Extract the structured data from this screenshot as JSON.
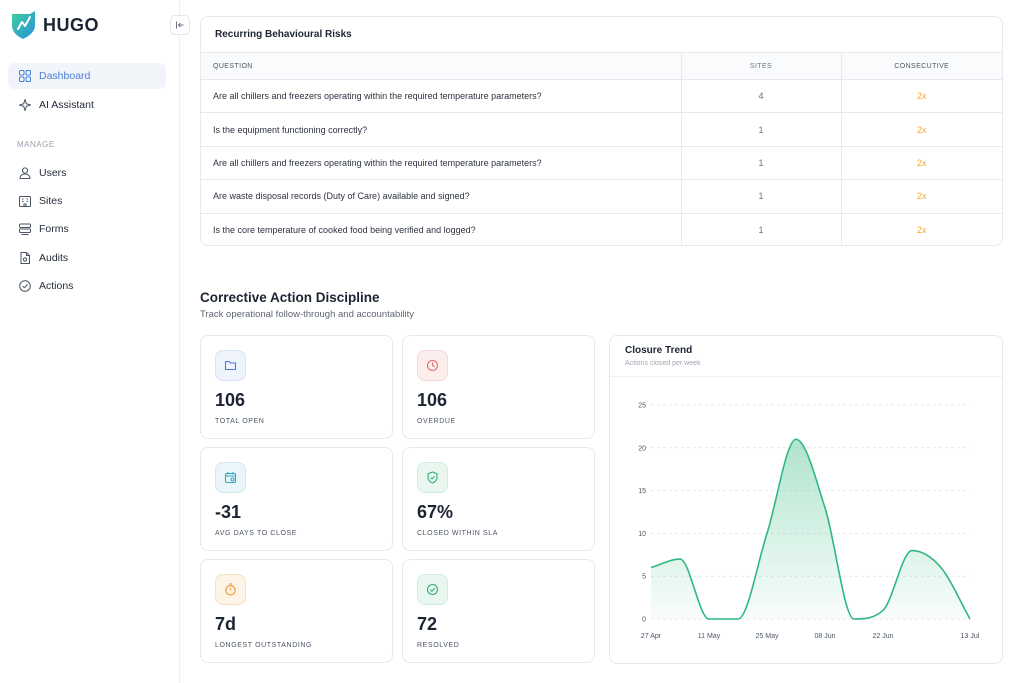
{
  "brand": {
    "name": "HUGO"
  },
  "sidebar": {
    "items": [
      {
        "label": "Dashboard",
        "icon": "grid-icon"
      },
      {
        "label": "AI Assistant",
        "icon": "sparkle-icon"
      }
    ],
    "section_label": "MANAGE",
    "manage": [
      {
        "label": "Users",
        "icon": "user-icon"
      },
      {
        "label": "Sites",
        "icon": "building-icon"
      },
      {
        "label": "Forms",
        "icon": "layers-icon"
      },
      {
        "label": "Audits",
        "icon": "document-icon"
      },
      {
        "label": "Actions",
        "icon": "check-circle-icon"
      }
    ]
  },
  "risks": {
    "title": "Recurring Behavioural Risks",
    "columns": [
      "QUESTION",
      "SITES",
      "CONSECUTIVE"
    ],
    "rows": [
      {
        "question": "Are all chillers and freezers operating within the required temperature parameters?",
        "sites": "4",
        "consecutive": "2x"
      },
      {
        "question": "Is the equipment functioning correctly?",
        "sites": "1",
        "consecutive": "2x"
      },
      {
        "question": "Are all chillers and freezers operating within the required temperature parameters?",
        "sites": "1",
        "consecutive": "2x"
      },
      {
        "question": "Are waste disposal records (Duty of Care) available and signed?",
        "sites": "1",
        "consecutive": "2x"
      },
      {
        "question": "Is the core temperature of cooked food being verified and logged?",
        "sites": "1",
        "consecutive": "2x"
      }
    ]
  },
  "discipline": {
    "title": "Corrective Action Discipline",
    "subtitle": "Track operational follow-through and accountability",
    "kpis": [
      {
        "value": "106",
        "label": "TOTAL OPEN",
        "icon": "folder-icon",
        "color": "#4a7fd8"
      },
      {
        "value": "106",
        "label": "OVERDUE",
        "icon": "clock-icon",
        "color": "#e26d6d"
      },
      {
        "value": "-31",
        "label": "AVG DAYS TO CLOSE",
        "icon": "calendar-icon",
        "color": "#3aa7c2"
      },
      {
        "value": "67%",
        "label": "CLOSED WITHIN SLA",
        "icon": "shield-check-icon",
        "color": "#2fae7a"
      },
      {
        "value": "7d",
        "label": "LONGEST OUTSTANDING",
        "icon": "timer-icon",
        "color": "#e8962e"
      },
      {
        "value": "72",
        "label": "RESOLVED",
        "icon": "check-circle-icon",
        "color": "#2fae7a"
      }
    ]
  },
  "chart_data": {
    "type": "area",
    "title": "Closure Trend",
    "subtitle": "Actions closed per week",
    "x_ticks": [
      "27 Apr",
      "11 May",
      "25 May",
      "08 Jun",
      "22 Jun",
      "13 Jul"
    ],
    "y_ticks": [
      0,
      5,
      10,
      15,
      20,
      25
    ],
    "ylim": [
      0,
      25
    ],
    "grid": true,
    "color": "#2fb87f",
    "series": [
      {
        "x": [
          "27 Apr",
          "04 May",
          "11 May",
          "18 May",
          "25 May",
          "01 Jun",
          "08 Jun",
          "15 Jun",
          "22 Jun",
          "29 Jun",
          "06 Jul",
          "13 Jul"
        ],
        "values": [
          6,
          7,
          0,
          0,
          10,
          21,
          13,
          0,
          1,
          8,
          6,
          0
        ]
      }
    ]
  }
}
